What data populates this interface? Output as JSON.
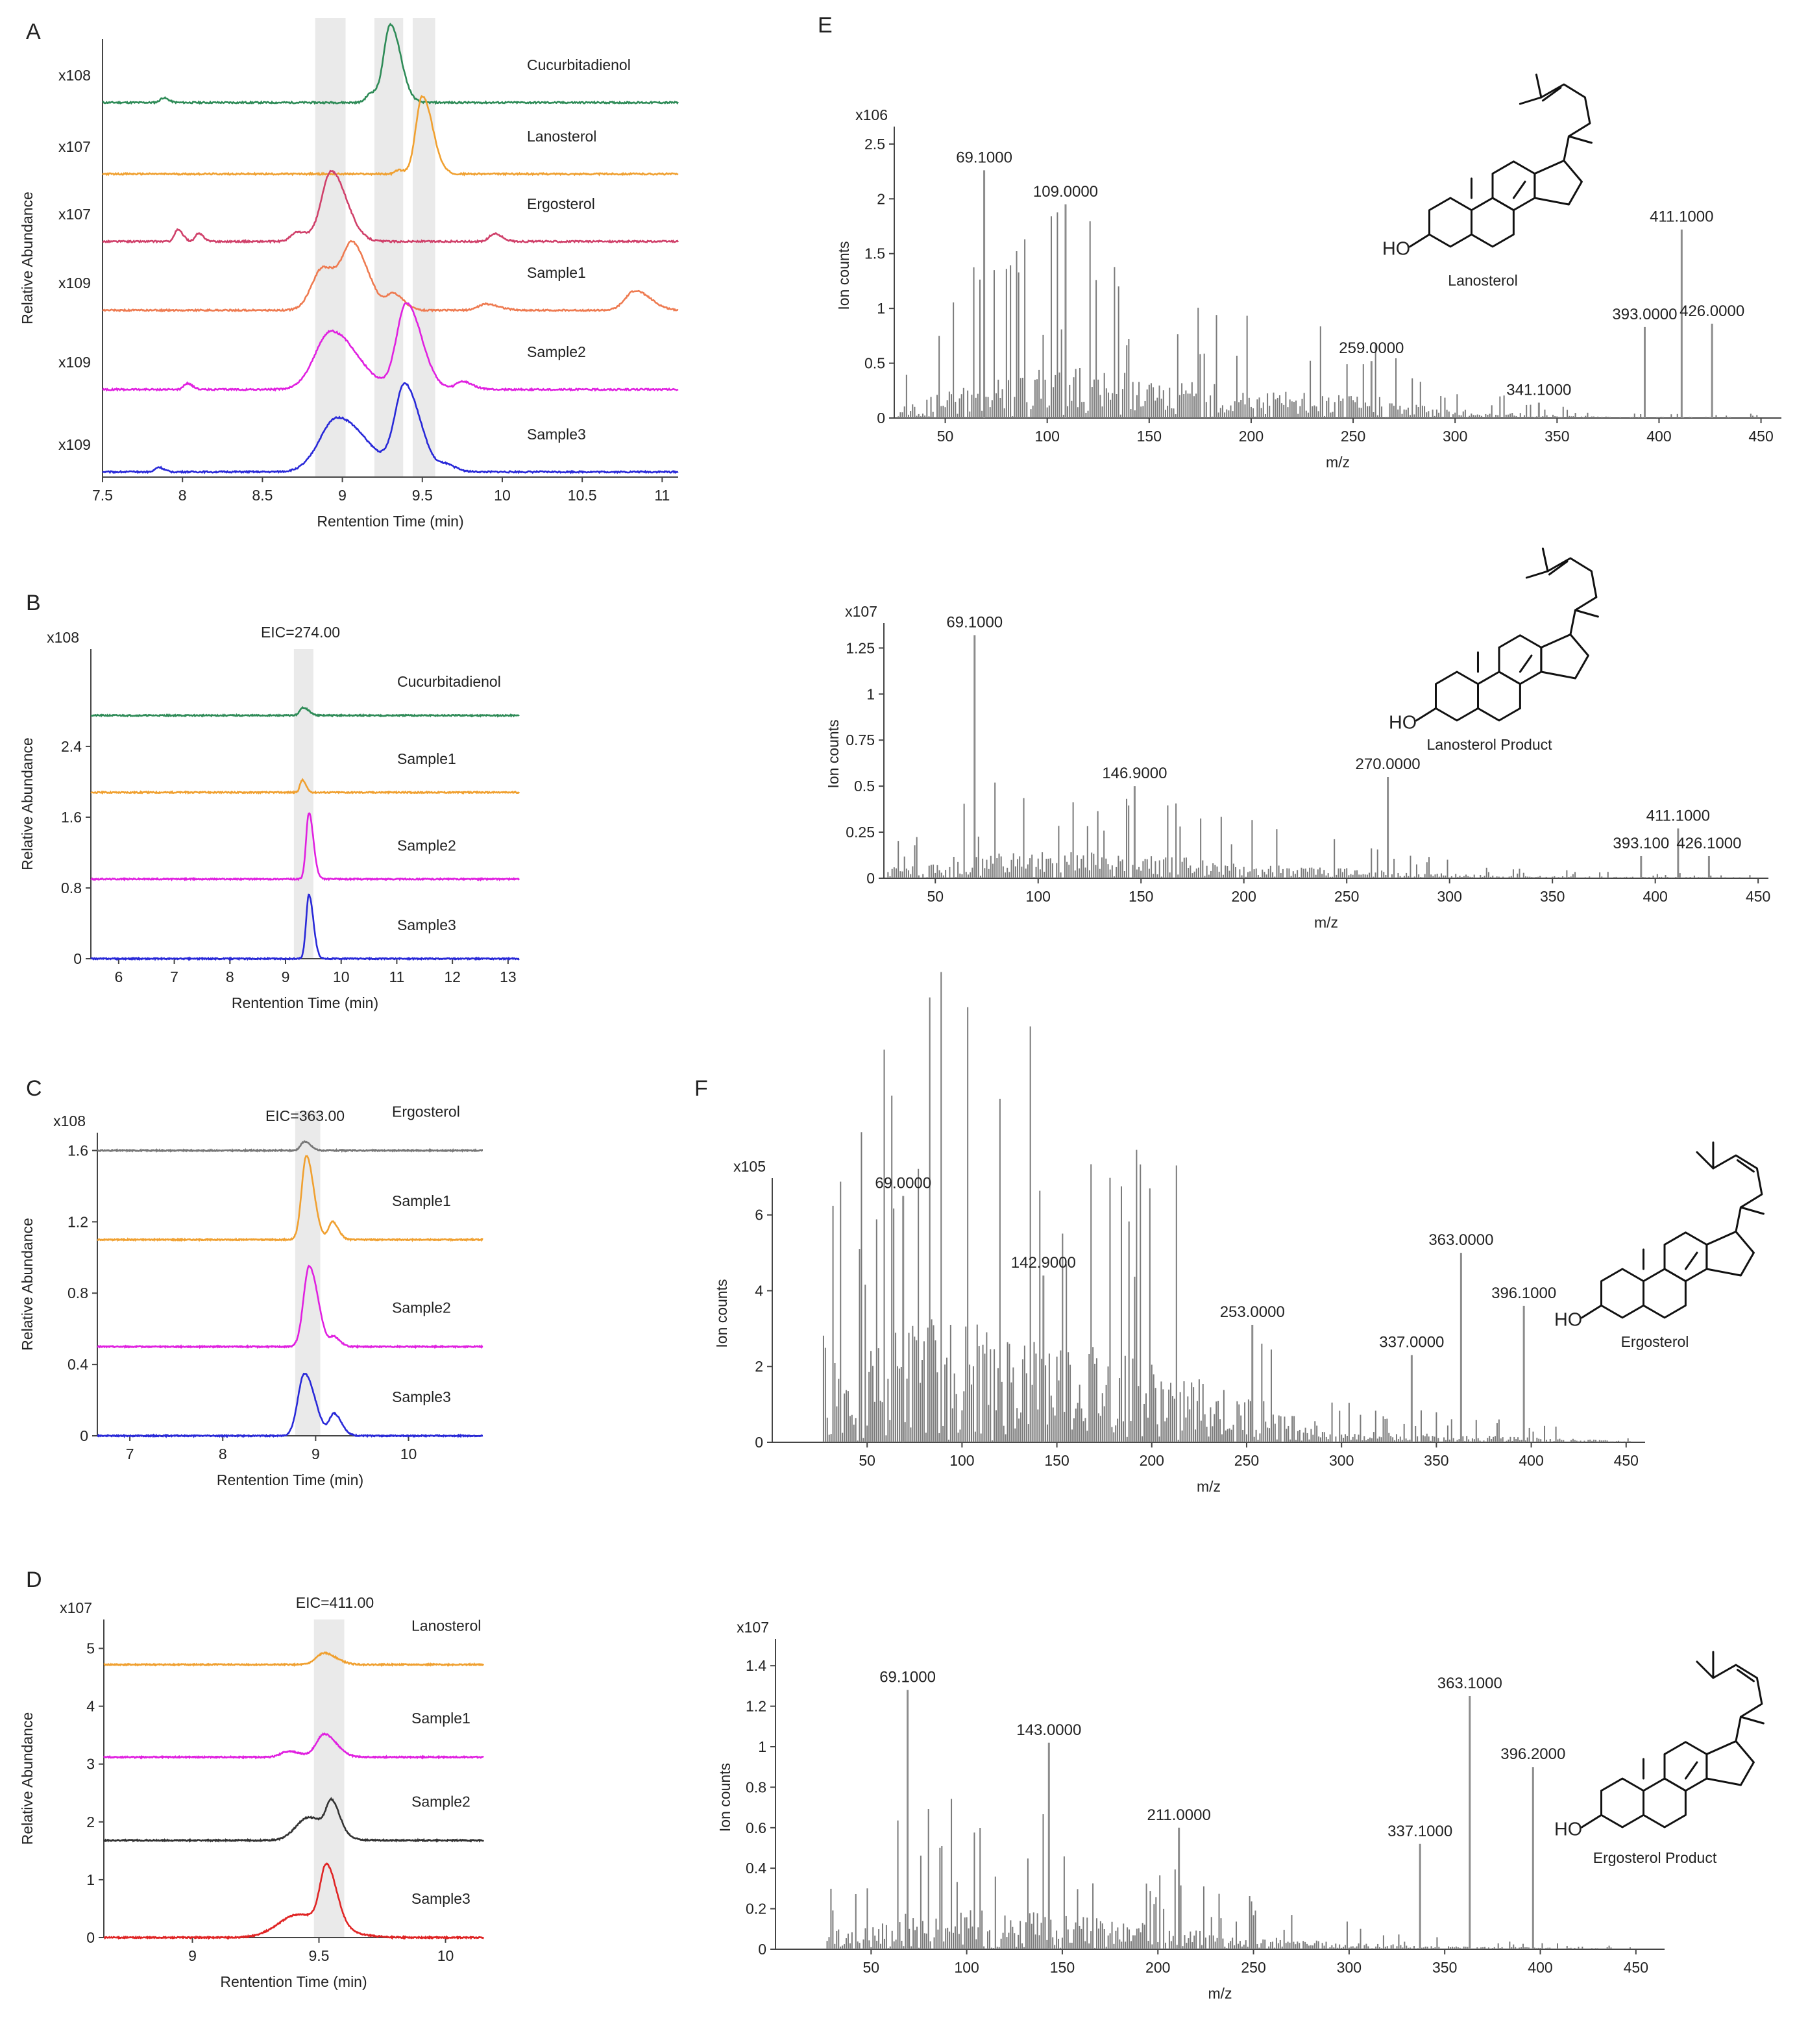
{
  "colors": {
    "cucurbitadienol": "#2e8b57",
    "lanosterol": "#f0a030",
    "ergosterol": "#d0406a",
    "sample1": "#ee7a50",
    "sample2": "#e020e0",
    "sample3": "#2828d8",
    "gray_trace": "#777777",
    "dark_trace": "#333333",
    "red_trace": "#e02424",
    "sample1_lano": "#e020e0",
    "bar": "#7a7a7a",
    "band": "#d9d9d9"
  },
  "chart_data": [
    {
      "id": "A",
      "type": "line",
      "panel_label": "A",
      "xlabel": "Rentention Time (min)",
      "ylabel": "Relative Abundance",
      "xlim": [
        7.5,
        11.1
      ],
      "xticks": [
        "7.5",
        "8",
        "8.5",
        "9",
        "9.5",
        "10",
        "10.5",
        "11"
      ],
      "bands": [
        [
          8.83,
          9.02
        ],
        [
          9.2,
          9.38
        ],
        [
          9.44,
          9.58
        ]
      ],
      "series": [
        {
          "name": "Cucurbitadienol",
          "scale": "x108",
          "color_key": "cucurbitadienol",
          "peaks": [
            {
              "rt": 9.3,
              "h": 1.0,
              "w": 0.04
            },
            {
              "rt": 9.18,
              "h": 0.12,
              "w": 0.03
            },
            {
              "rt": 7.88,
              "h": 0.06,
              "w": 0.02
            }
          ]
        },
        {
          "name": "Lanosterol",
          "scale": "x107",
          "color_key": "lanosterol",
          "peaks": [
            {
              "rt": 9.5,
              "h": 1.0,
              "w": 0.04
            },
            {
              "rt": 9.35,
              "h": 0.05,
              "w": 0.02
            }
          ]
        },
        {
          "name": "Ergosterol",
          "scale": "x107",
          "color_key": "ergosterol",
          "peaks": [
            {
              "rt": 8.93,
              "h": 0.9,
              "w": 0.06
            },
            {
              "rt": 7.97,
              "h": 0.15,
              "w": 0.02
            },
            {
              "rt": 8.1,
              "h": 0.1,
              "w": 0.02
            },
            {
              "rt": 9.95,
              "h": 0.1,
              "w": 0.03
            },
            {
              "rt": 8.72,
              "h": 0.12,
              "w": 0.04
            }
          ]
        },
        {
          "name": "Sample1",
          "scale": "x109",
          "color_key": "sample1",
          "peaks": [
            {
              "rt": 8.88,
              "h": 0.55,
              "w": 0.07
            },
            {
              "rt": 9.07,
              "h": 0.75,
              "w": 0.06
            },
            {
              "rt": 9.32,
              "h": 0.2,
              "w": 0.04
            },
            {
              "rt": 10.83,
              "h": 0.25,
              "w": 0.06
            },
            {
              "rt": 9.9,
              "h": 0.08,
              "w": 0.05
            }
          ]
        },
        {
          "name": "Sample2",
          "scale": "x109",
          "color_key": "sample2",
          "peaks": [
            {
              "rt": 8.93,
              "h": 0.75,
              "w": 0.1
            },
            {
              "rt": 9.4,
              "h": 1.1,
              "w": 0.06
            },
            {
              "rt": 9.75,
              "h": 0.1,
              "w": 0.04
            },
            {
              "rt": 8.03,
              "h": 0.08,
              "w": 0.02
            }
          ]
        },
        {
          "name": "Sample3",
          "scale": "x109",
          "color_key": "sample3",
          "peaks": [
            {
              "rt": 8.97,
              "h": 0.7,
              "w": 0.11
            },
            {
              "rt": 9.39,
              "h": 1.1,
              "w": 0.06
            },
            {
              "rt": 9.65,
              "h": 0.08,
              "w": 0.04
            },
            {
              "rt": 7.85,
              "h": 0.06,
              "w": 0.02
            }
          ]
        }
      ]
    },
    {
      "id": "B",
      "type": "line",
      "panel_label": "B",
      "title": "EIC=274.00",
      "scale": "x108",
      "xlabel": "Rentention Time (min)",
      "ylabel": "Relative Abundance",
      "xlim": [
        5.5,
        13.2
      ],
      "ylim": [
        0,
        3.5
      ],
      "xticks": [
        "6",
        "7",
        "8",
        "9",
        "10",
        "11",
        "12",
        "13"
      ],
      "yticks": [
        "0",
        "0.8",
        "1.6",
        "2.4"
      ],
      "bands": [
        [
          9.15,
          9.5
        ]
      ],
      "series": [
        {
          "name": "Cucurbitadienol",
          "color_key": "cucurbitadienol",
          "base": 2.75,
          "peaks": [
            {
              "rt": 9.32,
              "h": 0.09,
              "w": 0.06
            }
          ]
        },
        {
          "name": "Sample1",
          "color_key": "lanosterol",
          "base": 1.88,
          "peaks": [
            {
              "rt": 9.3,
              "h": 0.14,
              "w": 0.04
            }
          ]
        },
        {
          "name": "Sample2",
          "color_key": "sample2",
          "base": 0.9,
          "peaks": [
            {
              "rt": 9.42,
              "h": 0.75,
              "w": 0.05
            }
          ]
        },
        {
          "name": "Sample3",
          "color_key": "sample3",
          "base": 0.0,
          "peaks": [
            {
              "rt": 9.42,
              "h": 0.72,
              "w": 0.05
            }
          ]
        }
      ]
    },
    {
      "id": "C",
      "type": "line",
      "panel_label": "C",
      "title": "EIC=363.00",
      "scale": "x108",
      "xlabel": "Rentention Time (min)",
      "ylabel": "Relative Abundance",
      "xlim": [
        6.65,
        10.8
      ],
      "ylim": [
        0,
        1.7
      ],
      "xticks": [
        "7",
        "8",
        "9",
        "10"
      ],
      "yticks": [
        "0",
        "0.4",
        "0.8",
        "1.2",
        "1.6"
      ],
      "bands": [
        [
          8.78,
          9.05
        ]
      ],
      "series": [
        {
          "name": "Ergosterol",
          "color_key": "gray_trace",
          "base": 1.6,
          "peaks": [
            {
              "rt": 8.88,
              "h": 0.05,
              "w": 0.04
            }
          ]
        },
        {
          "name": "Sample1",
          "color_key": "lanosterol",
          "base": 1.1,
          "peaks": [
            {
              "rt": 8.9,
              "h": 0.47,
              "w": 0.05
            },
            {
              "rt": 9.18,
              "h": 0.1,
              "w": 0.04
            }
          ]
        },
        {
          "name": "Sample2",
          "color_key": "sample2",
          "base": 0.5,
          "peaks": [
            {
              "rt": 8.93,
              "h": 0.45,
              "w": 0.06
            },
            {
              "rt": 9.2,
              "h": 0.05,
              "w": 0.04
            }
          ]
        },
        {
          "name": "Sample3",
          "color_key": "sample3",
          "base": 0.0,
          "peaks": [
            {
              "rt": 8.88,
              "h": 0.35,
              "w": 0.07
            },
            {
              "rt": 9.2,
              "h": 0.12,
              "w": 0.05
            }
          ]
        }
      ]
    },
    {
      "id": "D",
      "type": "line",
      "panel_label": "D",
      "title": "EIC=411.00",
      "scale": "x107",
      "xlabel": "Rentention Time (min)",
      "ylabel": "Relative Abundance",
      "xlim": [
        8.65,
        10.15
      ],
      "ylim": [
        0,
        5.5
      ],
      "xticks": [
        "9",
        "9.5",
        "10"
      ],
      "yticks": [
        "0",
        "1",
        "2",
        "3",
        "4",
        "5"
      ],
      "bands": [
        [
          9.48,
          9.6
        ]
      ],
      "series": [
        {
          "name": "Lanosterol",
          "color_key": "lanosterol",
          "base": 4.72,
          "peaks": [
            {
              "rt": 9.52,
              "h": 0.2,
              "w": 0.03
            }
          ]
        },
        {
          "name": "Sample1",
          "color_key": "sample1_lano",
          "base": 3.12,
          "peaks": [
            {
              "rt": 9.52,
              "h": 0.4,
              "w": 0.03
            },
            {
              "rt": 9.38,
              "h": 0.1,
              "w": 0.03
            }
          ]
        },
        {
          "name": "Sample2",
          "color_key": "dark_trace",
          "base": 1.68,
          "peaks": [
            {
              "rt": 9.46,
              "h": 0.4,
              "w": 0.05
            },
            {
              "rt": 9.55,
              "h": 0.5,
              "w": 0.02
            }
          ]
        },
        {
          "name": "Sample3",
          "color_key": "red_trace",
          "base": 0.0,
          "peaks": [
            {
              "rt": 9.53,
              "h": 1.0,
              "w": 0.025
            },
            {
              "rt": 9.42,
              "h": 0.4,
              "w": 0.08
            }
          ]
        }
      ]
    },
    {
      "id": "E1",
      "type": "bar",
      "panel_label": "E",
      "scale": "x106",
      "xlabel": "m/z",
      "ylabel": "Ion counts",
      "xlim": [
        25,
        460
      ],
      "ylim": [
        0,
        2.6
      ],
      "xticks": [
        "50",
        "100",
        "150",
        "200",
        "250",
        "300",
        "350",
        "400",
        "450"
      ],
      "yticks": [
        "0",
        "0.5",
        "1",
        "1.5",
        "2",
        "2.5"
      ],
      "structure_name": "Lanosterol",
      "labeled_peaks": [
        {
          "mz": 69.1,
          "value": 2.26,
          "label": "69.1000"
        },
        {
          "mz": 109.0,
          "value": 1.95,
          "label": "109.0000"
        },
        {
          "mz": 259.0,
          "value": 0.52,
          "label": "259.0000"
        },
        {
          "mz": 341.1,
          "value": 0.14,
          "label": "341.1000"
        },
        {
          "mz": 393.0,
          "value": 0.83,
          "label": "393.0000"
        },
        {
          "mz": 411.1,
          "value": 1.72,
          "label": "411.1000"
        },
        {
          "mz": 426.0,
          "value": 0.86,
          "label": "426.0000"
        }
      ],
      "envelope": [
        [
          30,
          0.2
        ],
        [
          60,
          0.6
        ],
        [
          110,
          0.9
        ],
        [
          160,
          0.6
        ],
        [
          200,
          0.5
        ],
        [
          260,
          0.35
        ],
        [
          300,
          0.15
        ],
        [
          350,
          0.05
        ],
        [
          380,
          0.02
        ]
      ]
    },
    {
      "id": "E2",
      "type": "bar",
      "panel_label": "",
      "scale": "x107",
      "xlabel": "m/z",
      "ylabel": "Ion counts",
      "xlim": [
        25,
        455
      ],
      "ylim": [
        0,
        1.35
      ],
      "xticks": [
        "50",
        "100",
        "150",
        "200",
        "250",
        "300",
        "350",
        "400",
        "450"
      ],
      "yticks": [
        "0",
        "0.25",
        "0.5",
        "0.75",
        "1",
        "1.25"
      ],
      "structure_name": "Lanosterol Product",
      "labeled_peaks": [
        {
          "mz": 69.1,
          "value": 1.32,
          "label": "69.1000"
        },
        {
          "mz": 146.9,
          "value": 0.5,
          "label": "146.9000"
        },
        {
          "mz": 270.0,
          "value": 0.55,
          "label": "270.0000"
        },
        {
          "mz": 393.1,
          "value": 0.12,
          "label": "393.100"
        },
        {
          "mz": 411.1,
          "value": 0.27,
          "label": "411.1000"
        },
        {
          "mz": 426.1,
          "value": 0.12,
          "label": "426.1000"
        }
      ],
      "envelope": [
        [
          35,
          0.2
        ],
        [
          60,
          0.45
        ],
        [
          110,
          0.5
        ],
        [
          170,
          0.4
        ],
        [
          220,
          0.25
        ],
        [
          270,
          0.15
        ],
        [
          320,
          0.05
        ],
        [
          380,
          0.03
        ],
        [
          440,
          0.02
        ]
      ]
    },
    {
      "id": "F1",
      "type": "bar",
      "panel_label": "F",
      "scale": "x105",
      "xlabel": "m/z",
      "ylabel": "Ion counts",
      "xlim": [
        0,
        460
      ],
      "ylim": [
        0,
        6.8
      ],
      "xticks": [
        "50",
        "100",
        "150",
        "200",
        "250",
        "300",
        "350",
        "400",
        "450"
      ],
      "yticks": [
        "0",
        "2",
        "4",
        "6"
      ],
      "structure_name": "Ergosterol",
      "labeled_peaks": [
        {
          "mz": 69.0,
          "value": 6.5,
          "label": "69.0000"
        },
        {
          "mz": 142.9,
          "value": 4.4,
          "label": "142.9000"
        },
        {
          "mz": 253.0,
          "value": 3.1,
          "label": "253.0000"
        },
        {
          "mz": 337.0,
          "value": 2.3,
          "label": "337.0000"
        },
        {
          "mz": 363.0,
          "value": 5.0,
          "label": "363.0000"
        },
        {
          "mz": 396.1,
          "value": 3.6,
          "label": "396.1000"
        }
      ],
      "envelope": [
        [
          27,
          1.9
        ],
        [
          40,
          1.5
        ],
        [
          80,
          2.2
        ],
        [
          130,
          2.0
        ],
        [
          180,
          1.6
        ],
        [
          220,
          1.2
        ],
        [
          270,
          0.6
        ],
        [
          300,
          0.2
        ],
        [
          400,
          0.1
        ],
        [
          450,
          0.02
        ]
      ]
    },
    {
      "id": "F2",
      "type": "bar",
      "panel_label": "",
      "scale": "x107",
      "xlabel": "m/z",
      "ylabel": "Ion counts",
      "xlim": [
        0,
        465
      ],
      "ylim": [
        0,
        1.5
      ],
      "xticks": [
        "50",
        "100",
        "150",
        "200",
        "250",
        "300",
        "350",
        "400",
        "450"
      ],
      "yticks": [
        "0",
        "0.2",
        "0.4",
        "0.6",
        "0.8",
        "1",
        "1.2",
        "1.4"
      ],
      "structure_name": "Ergosterol Product",
      "labeled_peaks": [
        {
          "mz": 69.1,
          "value": 1.28,
          "label": "69.1000"
        },
        {
          "mz": 143.0,
          "value": 1.02,
          "label": "143.0000"
        },
        {
          "mz": 211.0,
          "value": 0.6,
          "label": "211.0000"
        },
        {
          "mz": 337.1,
          "value": 0.52,
          "label": "337.1000"
        },
        {
          "mz": 363.1,
          "value": 1.25,
          "label": "363.1000"
        },
        {
          "mz": 396.2,
          "value": 0.9,
          "label": "396.2000"
        }
      ],
      "envelope": [
        [
          40,
          0.3
        ],
        [
          70,
          0.6
        ],
        [
          120,
          0.6
        ],
        [
          160,
          0.5
        ],
        [
          220,
          0.3
        ],
        [
          270,
          0.15
        ],
        [
          340,
          0.05
        ],
        [
          450,
          0.01
        ]
      ]
    }
  ]
}
